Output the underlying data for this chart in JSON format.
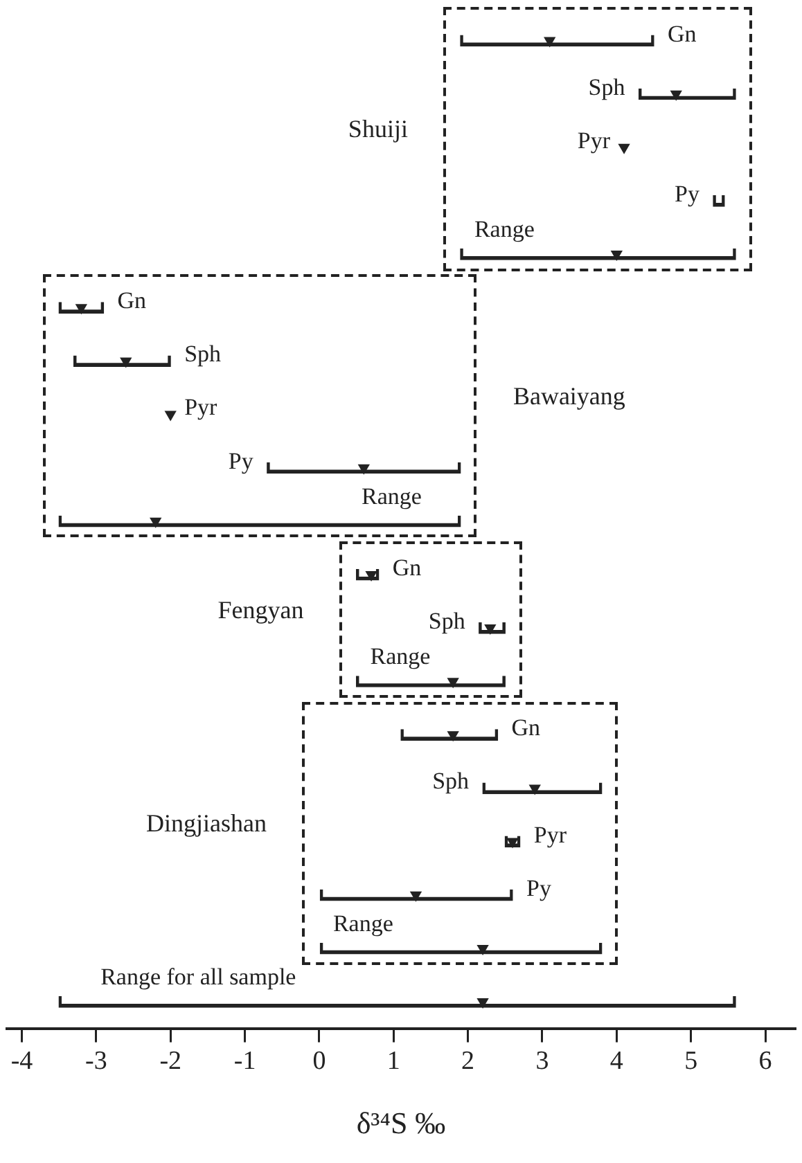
{
  "chart_data": {
    "type": "bar",
    "orientation": "horizontal",
    "xlabel": "δ³⁴S ‰",
    "categories": [
      "Gn",
      "Sph",
      "Pyr",
      "Py",
      "Range",
      "Gn",
      "Sph",
      "Pyr",
      "Py",
      "Range",
      "Gn",
      "Sph",
      "Range",
      "Gn",
      "Sph",
      "Pyr",
      "Py",
      "Range",
      "Range for all sample"
    ],
    "series": [
      {
        "color": "#222222",
        "base": [
          1.9,
          4.3,
          null,
          5.3,
          1.9,
          -3.5,
          -3.3,
          null,
          -0.7,
          -3.5,
          0.5,
          2.15,
          0.5,
          1.1,
          2.2,
          2.5,
          0,
          0,
          -3.5
        ],
        "values": [
          2.6,
          1.3,
          null,
          0.15,
          3.7,
          0.6,
          1.3,
          null,
          2.6,
          5.4,
          0.3,
          0.35,
          2.0,
          1.3,
          1.6,
          0.2,
          2.6,
          3.8,
          9.1
        ]
      },
      {
        "type": "scatter",
        "color": "#222222",
        "marker": "triangle",
        "values": [
          3.1,
          4.8,
          4.1,
          null,
          4.0,
          -3.2,
          -2.6,
          -2.0,
          0.6,
          -2.2,
          0.7,
          2.3,
          1.8,
          1.8,
          2.9,
          2.6,
          1.3,
          2.2,
          2.2
        ]
      }
    ],
    "annotations": [
      "Shuiji",
      "Bawaiyang",
      "Fengyan",
      "Dingjiashan"
    ],
    "xlim": [
      -4.2,
      6.4
    ],
    "xticks": [
      -4,
      -3,
      -2,
      -1,
      0,
      1,
      2,
      3,
      4,
      5,
      6
    ],
    "grid": false,
    "legend": false,
    "tick_labels": "x"
  }
}
